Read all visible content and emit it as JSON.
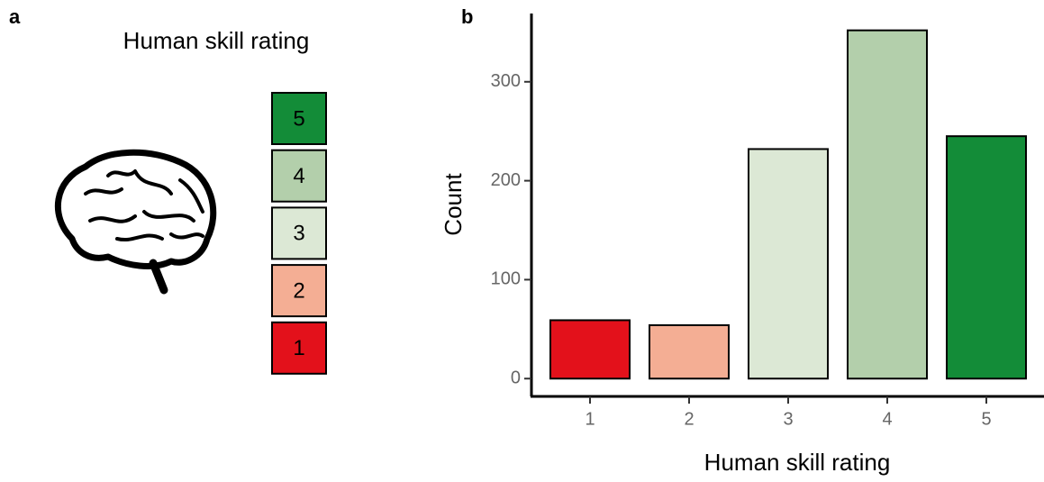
{
  "panel_labels": [
    "a",
    "b"
  ],
  "panel_a": {
    "title": "Human skill rating",
    "boxes": [
      {
        "label": "5",
        "color": "#138c38"
      },
      {
        "label": "4",
        "color": "#b3cfab"
      },
      {
        "label": "3",
        "color": "#dce8d5"
      },
      {
        "label": "2",
        "color": "#f4ae94"
      },
      {
        "label": "1",
        "color": "#e3111b"
      }
    ]
  },
  "chart_data": {
    "type": "bar",
    "x_label": "Human skill rating",
    "y_label": "Count",
    "categories": [
      "1",
      "2",
      "3",
      "4",
      "5"
    ],
    "values": [
      59,
      54,
      232,
      352,
      245
    ],
    "colors": [
      "#e3111b",
      "#f4ae94",
      "#dce8d5",
      "#b3cfab",
      "#138c38"
    ],
    "ylim": [
      -18,
      369
    ],
    "yticks": [
      0,
      100,
      200,
      300
    ],
    "grid": false
  }
}
